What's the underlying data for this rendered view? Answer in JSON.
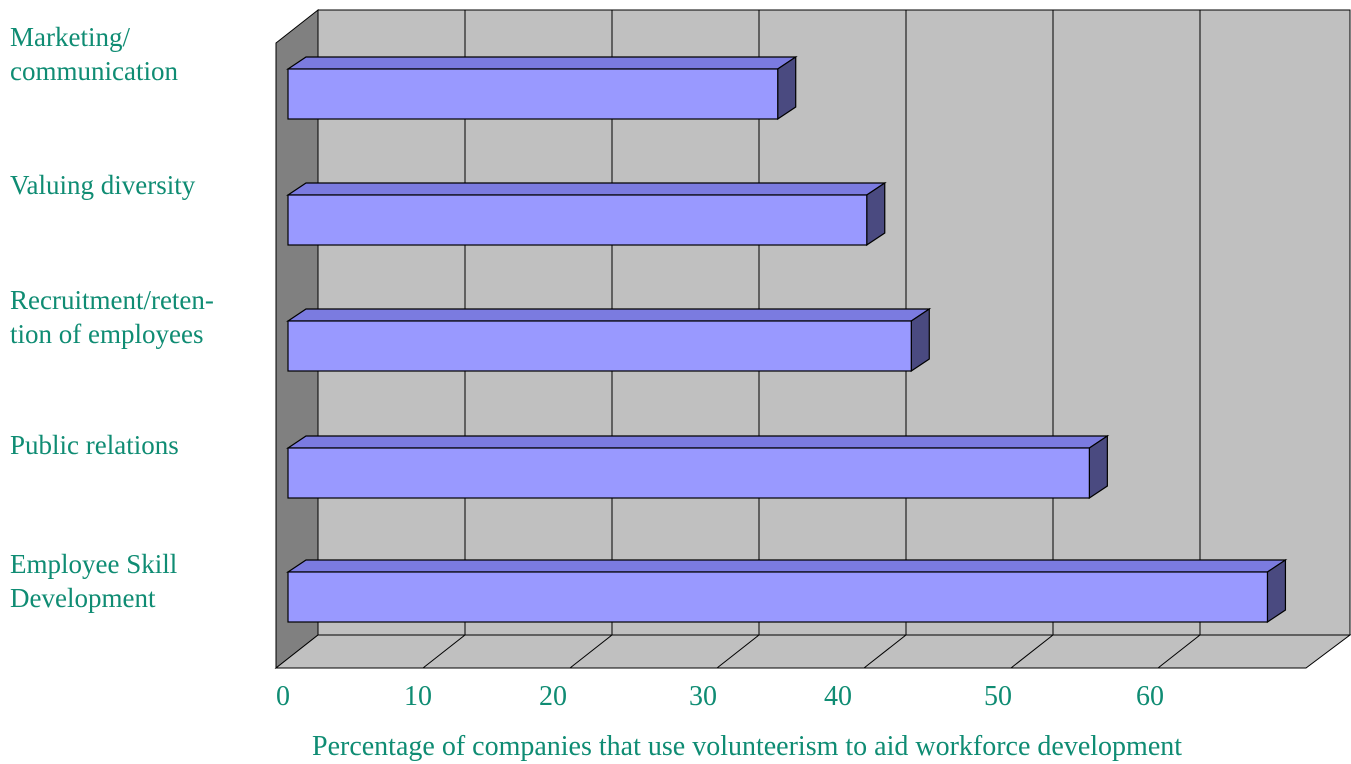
{
  "chart_data": {
    "type": "bar",
    "orientation": "horizontal",
    "style": "3d",
    "categories": [
      "Marketing/\ncommunication",
      "Valuing diversity",
      "Recruitment/reten-\ntion of employees",
      "Public relations",
      "Employee Skill\nDevelopment"
    ],
    "values": [
      33,
      39,
      42,
      54,
      66
    ],
    "x_ticks": [
      "0",
      "10",
      "20",
      "30",
      "40",
      "50",
      "60"
    ],
    "xlim": [
      0,
      70
    ],
    "xlabel": "Percentage of companies that use volunteerism to aid workforce development",
    "grid": true,
    "legend": "none",
    "colors": {
      "bar_front": "#9999ff",
      "bar_top": "#7b7be0",
      "bar_side": "#4a4a80",
      "back_wall": "#c0c0c0",
      "side_wall": "#808080",
      "floor": "#c0c0c0",
      "label_text": "#0f8c73"
    }
  }
}
